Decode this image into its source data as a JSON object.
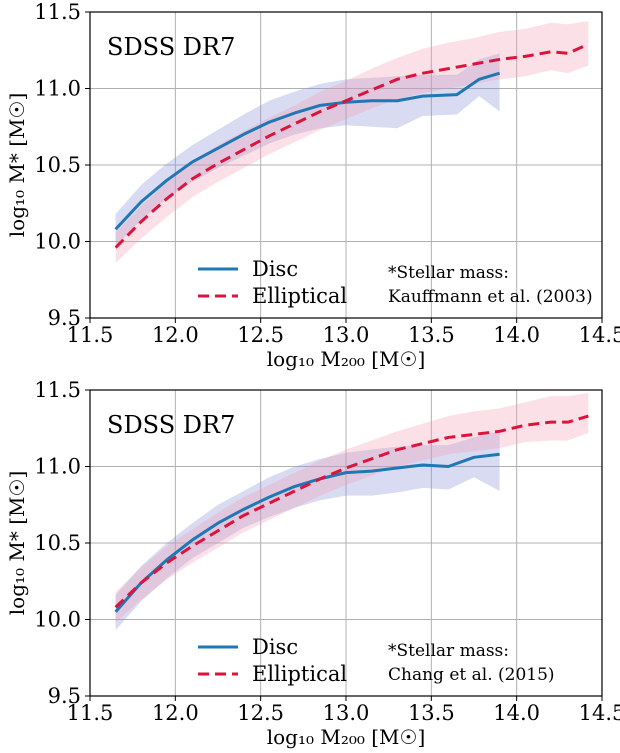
{
  "chart_data": [
    {
      "type": "line",
      "annotation": "SDSS DR7",
      "note": [
        "*Stellar mass:",
        "Kauffmann et al. (2003)"
      ],
      "xlabel": "log₁₀ M₂₀₀ [M☉]",
      "ylabel": "log₁₀ M* [M☉]",
      "xlim": [
        11.5,
        14.5
      ],
      "ylim": [
        9.5,
        11.5
      ],
      "xticks": [
        "11.5",
        "12.0",
        "12.5",
        "13.0",
        "13.5",
        "14.0",
        "14.5"
      ],
      "yticks": [
        "9.5",
        "10.0",
        "10.5",
        "11.0",
        "11.5"
      ],
      "grid": true,
      "legend_position": "bottom-center",
      "series": [
        {
          "name": "Disc",
          "color": "#1f77b4",
          "style": "solid",
          "x": [
            11.65,
            11.8,
            11.95,
            12.1,
            12.25,
            12.4,
            12.55,
            12.7,
            12.85,
            13.0,
            13.15,
            13.3,
            13.45,
            13.65,
            13.78,
            13.9
          ],
          "y": [
            10.08,
            10.26,
            10.4,
            10.52,
            10.61,
            10.7,
            10.78,
            10.84,
            10.89,
            10.91,
            10.92,
            10.92,
            10.95,
            10.96,
            11.06,
            11.1
          ],
          "band_lower": [
            9.97,
            10.14,
            10.28,
            10.39,
            10.48,
            10.56,
            10.64,
            10.7,
            10.74,
            10.76,
            10.75,
            10.74,
            10.82,
            10.83,
            10.95,
            10.85
          ],
          "band_upper": [
            10.18,
            10.37,
            10.51,
            10.63,
            10.73,
            10.83,
            10.92,
            10.98,
            11.03,
            11.06,
            11.07,
            11.08,
            11.09,
            11.09,
            11.19,
            11.23
          ]
        },
        {
          "name": "Elliptical",
          "color": "#dc143c",
          "style": "dashed",
          "x": [
            11.65,
            11.8,
            11.95,
            12.1,
            12.25,
            12.4,
            12.55,
            12.7,
            12.85,
            13.0,
            13.15,
            13.3,
            13.45,
            13.6,
            13.75,
            13.9,
            14.05,
            14.2,
            14.3,
            14.42
          ],
          "y": [
            9.96,
            10.13,
            10.28,
            10.41,
            10.51,
            10.6,
            10.69,
            10.77,
            10.85,
            10.92,
            10.99,
            11.06,
            11.1,
            11.13,
            11.16,
            11.19,
            11.21,
            11.24,
            11.23,
            11.29
          ],
          "band_lower": [
            9.86,
            10.02,
            10.16,
            10.29,
            10.39,
            10.48,
            10.57,
            10.65,
            10.73,
            10.8,
            10.87,
            10.93,
            10.97,
            11.0,
            11.03,
            11.06,
            11.08,
            11.12,
            11.1,
            11.15
          ],
          "band_upper": [
            10.06,
            10.23,
            10.39,
            10.52,
            10.63,
            10.72,
            10.81,
            10.89,
            10.98,
            11.05,
            11.13,
            11.2,
            11.26,
            11.3,
            11.33,
            11.37,
            11.39,
            11.43,
            11.42,
            11.44
          ]
        }
      ]
    },
    {
      "type": "line",
      "annotation": "SDSS DR7",
      "note": [
        "*Stellar mass:",
        "Chang et al. (2015)"
      ],
      "xlabel": "log₁₀ M₂₀₀ [M☉]",
      "ylabel": "log₁₀ M* [M☉]",
      "xlim": [
        11.5,
        14.5
      ],
      "ylim": [
        9.5,
        11.5
      ],
      "xticks": [
        "11.5",
        "12.0",
        "12.5",
        "13.0",
        "13.5",
        "14.0",
        "14.5"
      ],
      "yticks": [
        "9.5",
        "10.0",
        "10.5",
        "11.0",
        "11.5"
      ],
      "grid": true,
      "legend_position": "bottom-center",
      "series": [
        {
          "name": "Disc",
          "color": "#1f77b4",
          "style": "solid",
          "x": [
            11.65,
            11.8,
            11.95,
            12.1,
            12.25,
            12.4,
            12.55,
            12.7,
            12.85,
            13.0,
            13.15,
            13.3,
            13.45,
            13.6,
            13.75,
            13.9
          ],
          "y": [
            10.05,
            10.24,
            10.39,
            10.52,
            10.63,
            10.72,
            10.8,
            10.87,
            10.92,
            10.96,
            10.97,
            10.99,
            11.01,
            11.0,
            11.06,
            11.08
          ],
          "band_lower": [
            9.93,
            10.12,
            10.27,
            10.4,
            10.5,
            10.6,
            10.67,
            10.73,
            10.78,
            10.81,
            10.81,
            10.83,
            10.86,
            10.85,
            10.93,
            10.84
          ],
          "band_upper": [
            10.16,
            10.35,
            10.5,
            10.63,
            10.75,
            10.84,
            10.93,
            11.0,
            11.05,
            11.09,
            11.11,
            11.13,
            11.14,
            11.14,
            11.19,
            11.23
          ]
        },
        {
          "name": "Elliptical",
          "color": "#dc143c",
          "style": "dashed",
          "x": [
            11.65,
            11.8,
            11.95,
            12.1,
            12.25,
            12.4,
            12.55,
            12.7,
            12.85,
            13.0,
            13.15,
            13.3,
            13.45,
            13.6,
            13.75,
            13.9,
            14.05,
            14.2,
            14.3,
            14.42
          ],
          "y": [
            10.08,
            10.24,
            10.37,
            10.48,
            10.58,
            10.68,
            10.76,
            10.84,
            10.92,
            10.99,
            11.05,
            11.11,
            11.15,
            11.19,
            11.21,
            11.23,
            11.27,
            11.29,
            11.29,
            11.33
          ],
          "band_lower": [
            9.98,
            10.13,
            10.26,
            10.37,
            10.47,
            10.57,
            10.65,
            10.73,
            10.81,
            10.88,
            10.94,
            11.0,
            11.04,
            11.08,
            11.1,
            11.12,
            11.16,
            11.17,
            11.17,
            11.22
          ],
          "band_upper": [
            10.18,
            10.34,
            10.48,
            10.59,
            10.7,
            10.8,
            10.88,
            10.96,
            11.04,
            11.11,
            11.17,
            11.23,
            11.28,
            11.33,
            11.36,
            11.38,
            11.42,
            11.46,
            11.46,
            11.48
          ]
        }
      ]
    }
  ]
}
